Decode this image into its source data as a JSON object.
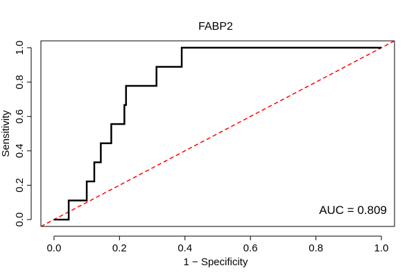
{
  "chart_data": {
    "type": "line",
    "title": "FABP2",
    "xlabel": "1 − Specificity",
    "ylabel": "Sensitivity",
    "xlim": [
      -0.04,
      1.04
    ],
    "ylim": [
      -0.04,
      1.04
    ],
    "x_ticks": [
      0.0,
      0.2,
      0.4,
      0.6,
      0.8,
      1.0
    ],
    "x_tick_labels": [
      "0.0",
      "0.2",
      "0.4",
      "0.6",
      "0.8",
      "1.0"
    ],
    "y_ticks": [
      0.0,
      0.2,
      0.4,
      0.6,
      0.8,
      1.0
    ],
    "y_tick_labels": [
      "0.0",
      "0.2",
      "0.4",
      "0.6",
      "0.8",
      "1.0"
    ],
    "grid": false,
    "annotation": "AUC = 0.809",
    "series": [
      {
        "color": "#000000",
        "x": [
          0.0,
          0.045,
          0.045,
          0.1,
          0.1,
          0.123,
          0.123,
          0.143,
          0.143,
          0.175,
          0.175,
          0.215,
          0.215,
          0.22,
          0.22,
          0.313,
          0.313,
          0.39,
          0.39,
          1.0
        ],
        "y": [
          0.0,
          0.0,
          0.111,
          0.111,
          0.222,
          0.222,
          0.333,
          0.333,
          0.444,
          0.444,
          0.556,
          0.556,
          0.667,
          0.667,
          0.778,
          0.778,
          0.889,
          0.889,
          1.0,
          1.0
        ]
      }
    ],
    "reference_line": {
      "color": "#ff0000",
      "style": "dashed",
      "x": [
        -0.04,
        1.04
      ],
      "y": [
        -0.04,
        1.04
      ]
    }
  }
}
